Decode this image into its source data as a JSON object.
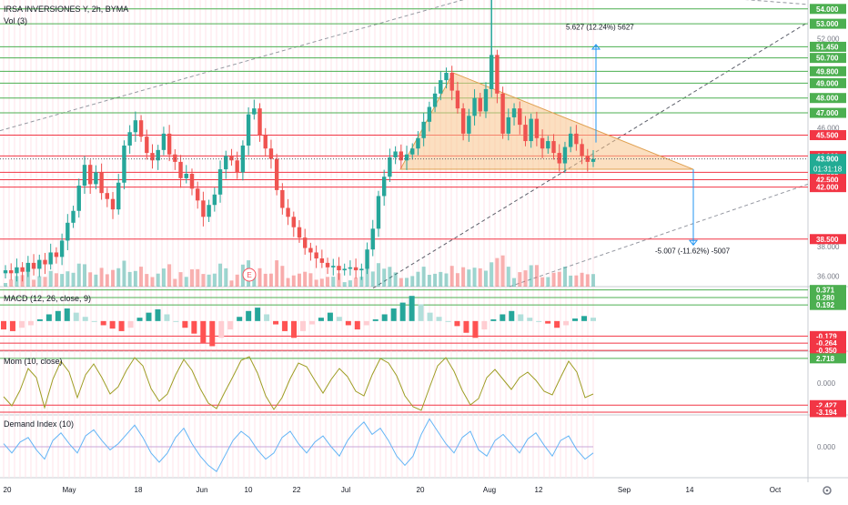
{
  "header": {
    "symbol_line": "IRSA INVERSIONES Y, 2h, BYMA",
    "volume_label": "Vol (3)"
  },
  "colors": {
    "up": "#26a69a",
    "down": "#ef5350",
    "green_level": "#4caf50",
    "red_level": "#f23645",
    "triangle_fill": "#f7c58c",
    "triangle_edge": "#e0a050",
    "target_line": "#2196f3",
    "dashed": "#9598a1",
    "mom_line": "#9e9d24",
    "demand_line": "#64b5f6",
    "white_text": "#ffffff"
  },
  "chart_data": [
    {
      "type": "line",
      "name": "price",
      "title": "IRSA INVERSIONES Y, 2h, BYMA",
      "ylim": [
        35.3,
        54.6
      ],
      "x_ticks": [
        "20",
        "May",
        "18",
        "Jun",
        "10",
        "22",
        "Jul",
        "20",
        "Aug",
        "12",
        "Sep",
        "14",
        "Oct"
      ],
      "price_axis_ticks": [
        "52.000",
        "46.000",
        "38.000",
        "36.000"
      ],
      "green_levels": [
        {
          "value": 54.0,
          "label": "54.000"
        },
        {
          "value": 53.0,
          "label": "53.000"
        },
        {
          "value": 51.45,
          "label": "51.450"
        },
        {
          "value": 50.7,
          "label": "50.700"
        },
        {
          "value": 49.8,
          "label": "49.800"
        },
        {
          "value": 49.0,
          "label": "49.000"
        },
        {
          "value": 48.0,
          "label": "48.000"
        },
        {
          "value": 47.0,
          "label": "47.000"
        }
      ],
      "red_levels": [
        {
          "value": 45.5,
          "label": "45.500"
        },
        {
          "value": 44.1,
          "label": "44.100"
        },
        {
          "value": 43.0,
          "label": "43.000"
        },
        {
          "value": 42.5,
          "label": "42.500"
        },
        {
          "value": 42.0,
          "label": "42.000"
        },
        {
          "value": 38.5,
          "label": "38.500"
        }
      ],
      "current_price": "43.900",
      "countdown": "01:31:18",
      "triangle": {
        "top": 49.7,
        "base": 43.2
      },
      "targets": {
        "up_label": "5.627 (12.24%) 5627",
        "up_target": 51.6,
        "down_label": "-5.007 (-11.62%) -5007",
        "down_target": 38.1
      },
      "earnings_marker": "E",
      "closes": [
        36.4,
        36.2,
        36.6,
        36.3,
        36.9,
        36.5,
        37.1,
        36.8,
        37.6,
        37.3,
        38.4,
        39.6,
        40.4,
        42.1,
        43.5,
        42.2,
        43.0,
        41.6,
        41.2,
        40.5,
        42.3,
        44.8,
        45.7,
        46.5,
        45.4,
        44.3,
        43.8,
        44.5,
        45.6,
        44.2,
        43.7,
        42.6,
        42.9,
        41.9,
        41.1,
        40.0,
        40.8,
        41.5,
        43.2,
        44.1,
        43.8,
        43.0,
        44.8,
        46.9,
        47.3,
        45.5,
        44.6,
        43.9,
        41.8,
        40.6,
        40.0,
        39.3,
        38.6,
        37.9,
        37.6,
        37.2,
        36.9,
        36.6,
        36.7,
        36.4,
        36.5,
        36.6,
        36.4,
        36.5,
        37.8,
        39.2,
        41.4,
        42.7,
        44.0,
        44.4,
        43.8,
        44.2,
        44.6,
        45.3,
        46.4,
        47.4,
        48.3,
        49.2,
        49.7,
        48.5,
        47.3,
        45.6,
        46.8,
        48.0,
        47.1,
        48.6,
        50.9,
        48.3,
        45.6,
        46.7,
        47.3,
        46.2,
        45.1,
        46.6,
        45.3,
        44.6,
        45.1,
        44.3,
        43.6,
        44.7,
        45.6,
        44.9,
        44.1,
        43.7,
        43.9
      ]
    },
    {
      "type": "bar",
      "name": "MACD (12, 26, close, 9)",
      "title": "MACD (12, 26, close, 9)",
      "ylim": [
        -0.36,
        0.4
      ],
      "green_levels": [
        {
          "value": 0.371,
          "label": "0.371"
        },
        {
          "value": 0.28,
          "label": "0.280"
        },
        {
          "value": 0.192,
          "label": "0.192"
        }
      ],
      "red_levels": [
        {
          "value": -0.179,
          "label": "-0.179"
        },
        {
          "value": -0.264,
          "label": "-0.264"
        },
        {
          "value": -0.35,
          "label": "-0.350"
        }
      ],
      "values": [
        -0.1,
        -0.12,
        -0.08,
        -0.05,
        0.02,
        0.08,
        0.12,
        0.15,
        0.1,
        0.05,
        0.0,
        -0.05,
        -0.09,
        -0.12,
        -0.08,
        0.04,
        0.1,
        0.14,
        0.08,
        0.0,
        -0.08,
        -0.15,
        -0.26,
        -0.3,
        -0.2,
        -0.1,
        0.05,
        0.12,
        0.16,
        0.08,
        -0.04,
        -0.12,
        -0.2,
        -0.12,
        -0.04,
        0.04,
        0.1,
        0.05,
        -0.05,
        -0.1,
        -0.05,
        0.02,
        0.08,
        0.15,
        0.22,
        0.3,
        0.2,
        0.1,
        0.05,
        0.0,
        -0.06,
        -0.14,
        -0.2,
        -0.1,
        0.02,
        0.08,
        0.12,
        0.08,
        0.04,
        0.0,
        -0.03,
        -0.08,
        -0.05,
        0.03,
        0.06,
        0.04
      ]
    },
    {
      "type": "line",
      "name": "Mom (10, close)",
      "title": "Mom (10, close)",
      "ylim": [
        -3.5,
        3.4
      ],
      "green_levels": [
        {
          "value": 2.718,
          "label": "2.718"
        }
      ],
      "red_levels": [
        {
          "value": -2.427,
          "label": "-2.427"
        },
        {
          "value": -3.194,
          "label": "-3.194"
        }
      ],
      "axis_ticks": [
        "0.000"
      ],
      "values": [
        -1.5,
        -2.5,
        -0.8,
        1.6,
        0.6,
        -2.7,
        0.4,
        2.4,
        1.2,
        -1.6,
        0.9,
        2.1,
        0.6,
        -1.2,
        -0.4,
        1.4,
        2.8,
        1.9,
        -0.6,
        -2.0,
        -1.2,
        0.9,
        2.6,
        1.4,
        -0.6,
        -2.2,
        -2.8,
        -1.0,
        0.7,
        2.5,
        2.9,
        1.1,
        -1.4,
        -2.9,
        -1.6,
        0.5,
        2.2,
        1.8,
        0.3,
        -1.1,
        0.4,
        1.6,
        0.7,
        -0.9,
        -1.4,
        0.9,
        2.7,
        2.2,
        0.8,
        -1.4,
        -2.6,
        -3.0,
        -0.5,
        1.9,
        2.8,
        1.3,
        -0.8,
        -2.4,
        -1.7,
        0.6,
        1.5,
        0.4,
        -0.7,
        0.6,
        1.2,
        0.3,
        -0.9,
        -1.3,
        0.6,
        2.4,
        1.2,
        -1.6,
        -1.2
      ]
    },
    {
      "type": "line",
      "name": "Demand Index (10)",
      "title": "Demand Index (10)",
      "ylim": [
        -1.0,
        1.0
      ],
      "axis_ticks": [
        "0.000"
      ],
      "values": [
        0.1,
        -0.2,
        0.15,
        0.3,
        -0.1,
        -0.4,
        0.2,
        0.45,
        0.1,
        -0.2,
        0.35,
        0.55,
        0.2,
        -0.1,
        0.1,
        0.4,
        0.7,
        0.3,
        -0.2,
        -0.5,
        -0.2,
        0.3,
        0.6,
        0.1,
        -0.3,
        -0.6,
        -0.8,
        -0.3,
        0.2,
        0.5,
        0.3,
        -0.1,
        -0.4,
        -0.2,
        0.3,
        0.5,
        0.1,
        -0.2,
        0.15,
        0.35,
        0.0,
        -0.3,
        0.2,
        0.55,
        0.8,
        0.4,
        0.6,
        0.2,
        -0.3,
        -0.6,
        -0.3,
        0.4,
        0.9,
        0.5,
        0.1,
        -0.2,
        0.3,
        0.5,
        -0.1,
        -0.3,
        0.2,
        0.4,
        0.1,
        -0.2,
        0.25,
        0.45,
        0.05,
        -0.3,
        0.2,
        0.35,
        -0.1,
        -0.4,
        -0.2
      ]
    }
  ]
}
